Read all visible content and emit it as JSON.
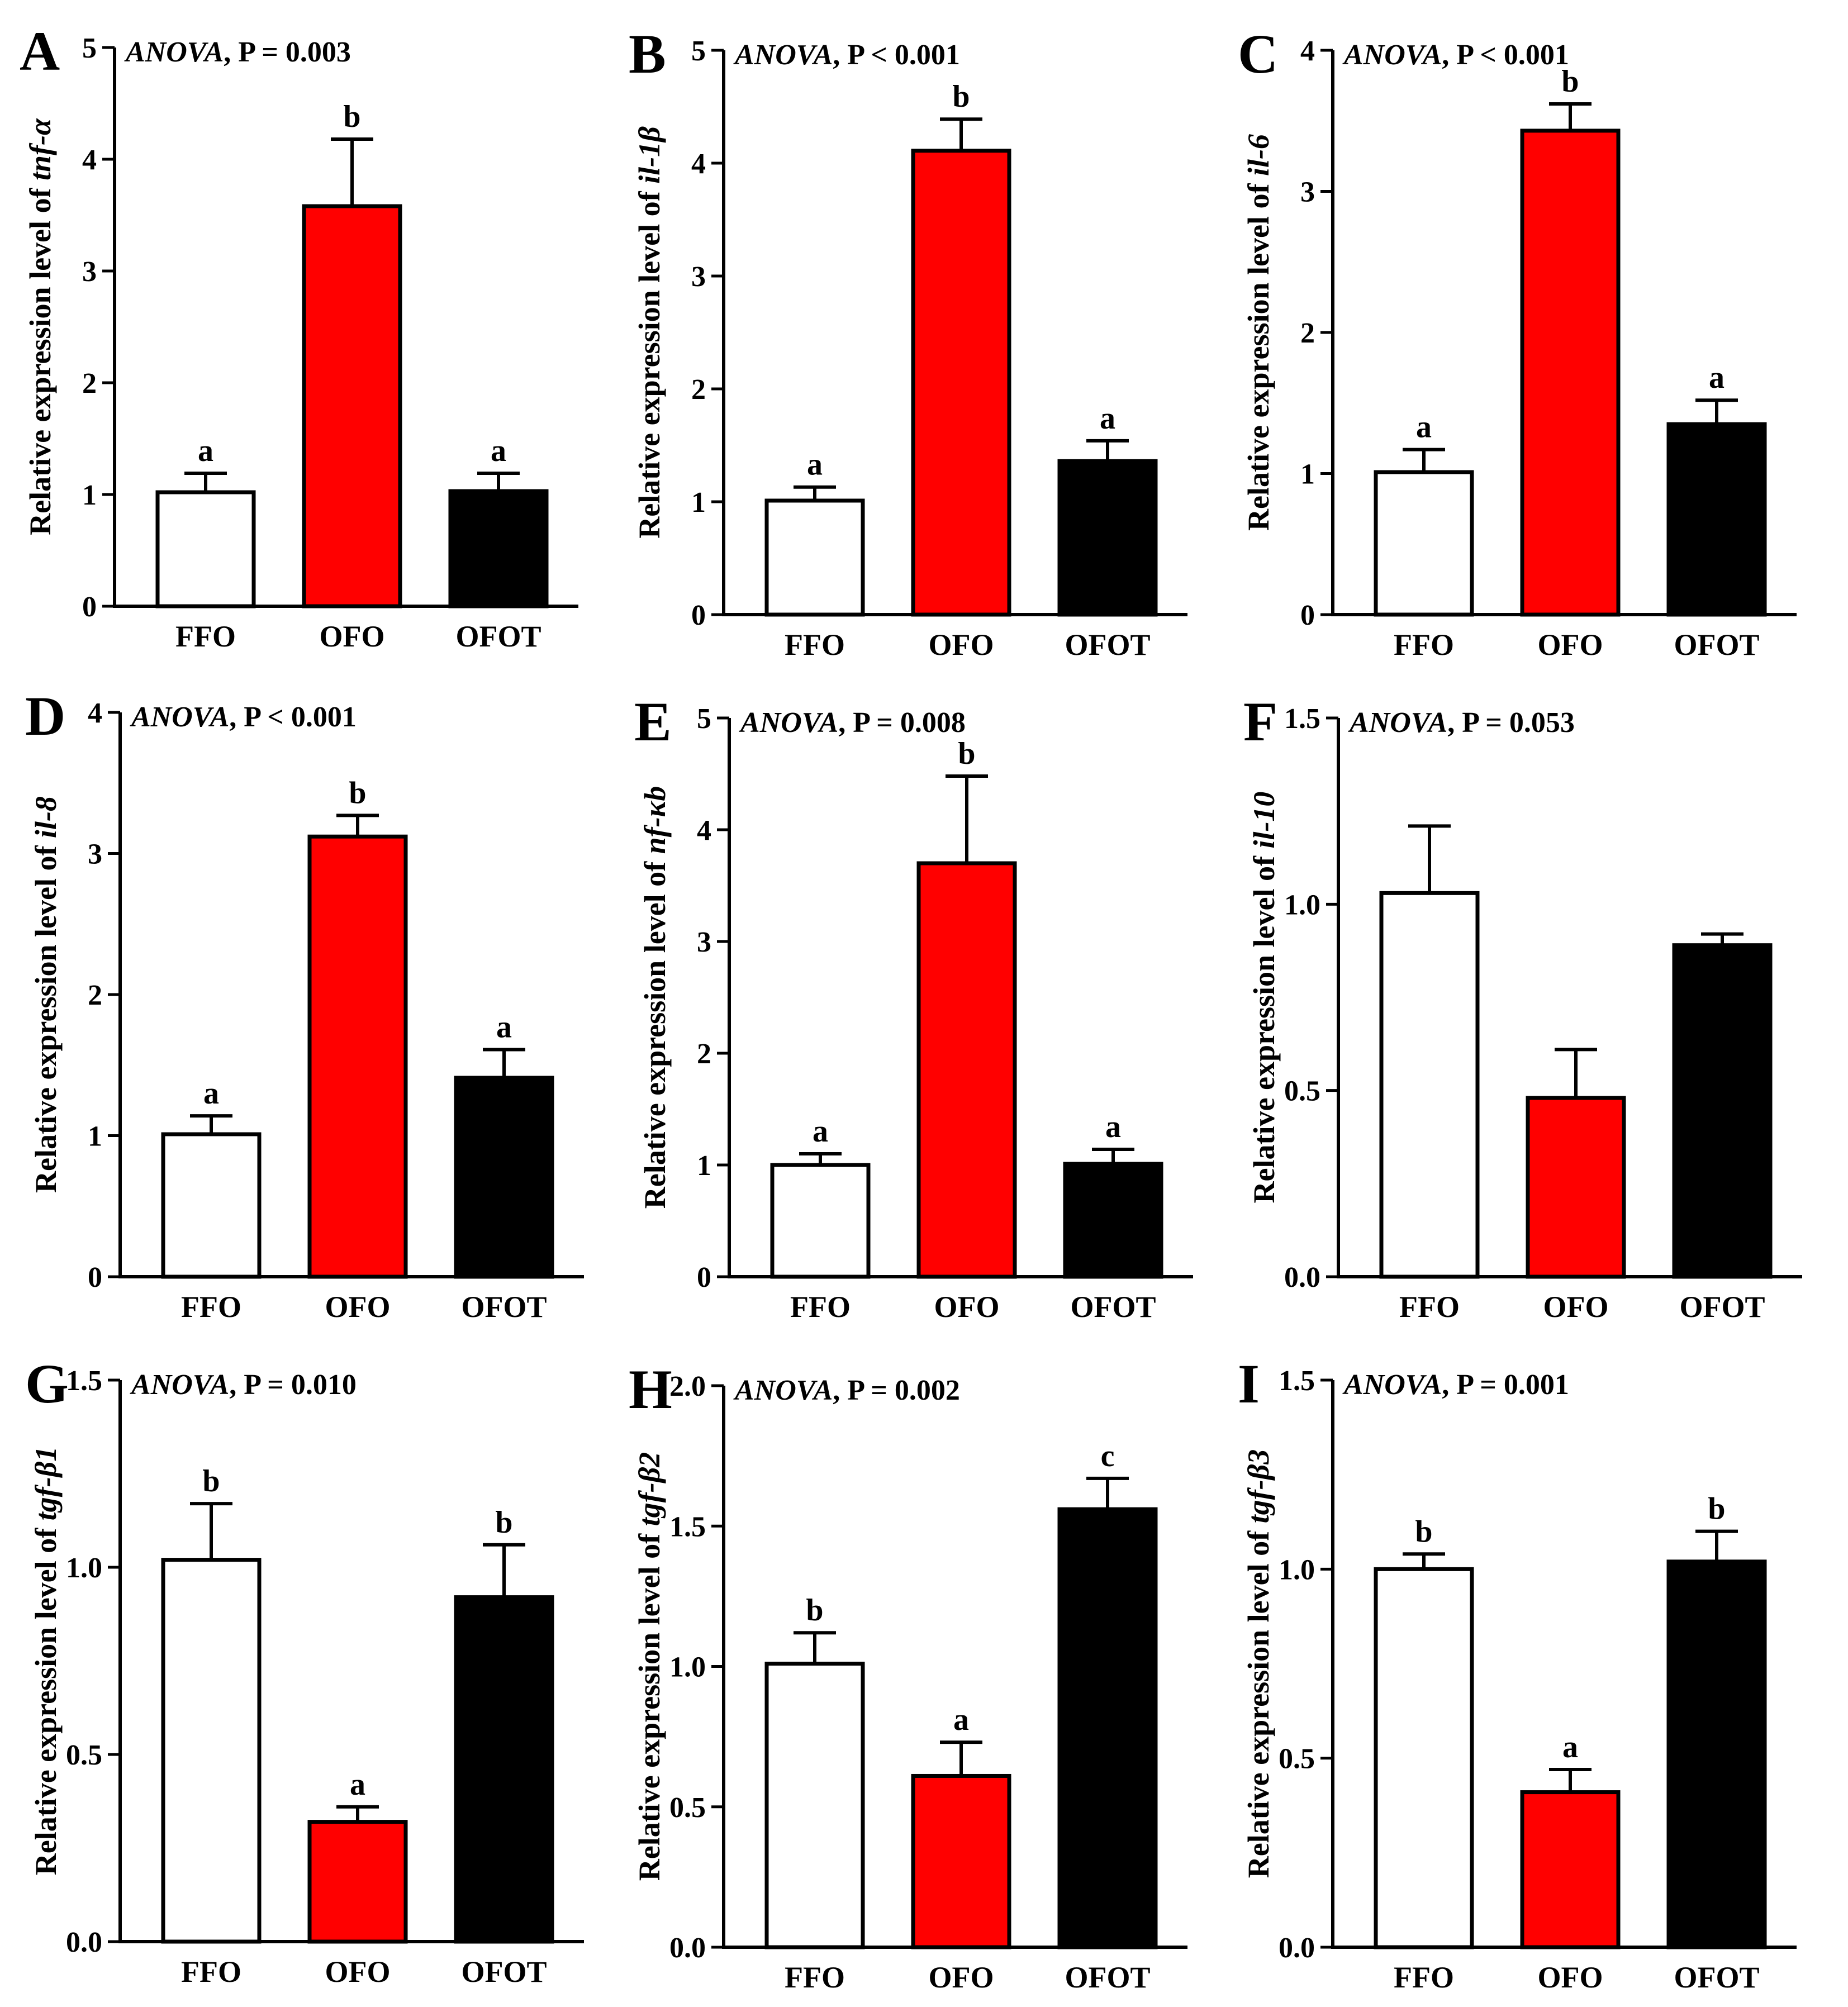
{
  "figure": {
    "x_categories": [
      "FFO",
      "OFO",
      "OFOT"
    ],
    "colors": {
      "FFO": "#ffffff",
      "OFO": "#ff0000",
      "OFOT": "#000000"
    },
    "ylabel_prefix": "Relative expression level of "
  },
  "chart_data": [
    {
      "panel": "A",
      "type": "bar",
      "gene": "tnf-α",
      "ylabel": "Relative expression level of tnf-α",
      "stat_test": "ANOVA",
      "p_text": "P = 0.003",
      "categories": [
        "FFO",
        "OFO",
        "OFOT"
      ],
      "values": [
        1.02,
        3.58,
        1.03
      ],
      "errors": [
        0.17,
        0.6,
        0.16
      ],
      "letters": [
        "a",
        "b",
        "a"
      ],
      "ylim": [
        0,
        5
      ],
      "yticks": [
        "0",
        "1",
        "2",
        "3",
        "4",
        "5"
      ]
    },
    {
      "panel": "B",
      "type": "bar",
      "gene": "il-1β",
      "ylabel": "Relative expression level of il-1β",
      "stat_test": "ANOVA",
      "p_text": "P < 0.001",
      "categories": [
        "FFO",
        "OFO",
        "OFOT"
      ],
      "values": [
        1.01,
        4.11,
        1.36
      ],
      "errors": [
        0.12,
        0.28,
        0.18
      ],
      "letters": [
        "a",
        "b",
        "a"
      ],
      "ylim": [
        0,
        5
      ],
      "yticks": [
        "0",
        "1",
        "2",
        "3",
        "4",
        "5"
      ]
    },
    {
      "panel": "C",
      "type": "bar",
      "gene": "il-6",
      "ylabel": "Relative expression level of il-6",
      "stat_test": "ANOVA",
      "p_text": "P < 0.001",
      "categories": [
        "FFO",
        "OFO",
        "OFOT"
      ],
      "values": [
        1.01,
        3.43,
        1.35
      ],
      "errors": [
        0.16,
        0.19,
        0.17
      ],
      "letters": [
        "a",
        "b",
        "a"
      ],
      "ylim": [
        0,
        4
      ],
      "yticks": [
        "0",
        "1",
        "2",
        "3",
        "4"
      ]
    },
    {
      "panel": "D",
      "type": "bar",
      "gene": "il-8",
      "ylabel": "Relative expression level of il-8",
      "stat_test": "ANOVA",
      "p_text": "P < 0.001",
      "categories": [
        "FFO",
        "OFO",
        "OFOT"
      ],
      "values": [
        1.01,
        3.12,
        1.41
      ],
      "errors": [
        0.13,
        0.15,
        0.2
      ],
      "letters": [
        "a",
        "b",
        "a"
      ],
      "ylim": [
        0,
        4
      ],
      "yticks": [
        "0",
        "1",
        "2",
        "3",
        "4"
      ]
    },
    {
      "panel": "E",
      "type": "bar",
      "gene": "nf-κb",
      "ylabel": "Relative expression level of nf-κb",
      "stat_test": "ANOVA",
      "p_text": "P = 0.008",
      "categories": [
        "FFO",
        "OFO",
        "OFOT"
      ],
      "values": [
        1.0,
        3.7,
        1.01
      ],
      "errors": [
        0.1,
        0.78,
        0.13
      ],
      "letters": [
        "a",
        "b",
        "a"
      ],
      "ylim": [
        0,
        5
      ],
      "yticks": [
        "0",
        "1",
        "2",
        "3",
        "4",
        "5"
      ]
    },
    {
      "panel": "F",
      "type": "bar",
      "gene": "il-10",
      "ylabel": "Relative expression level of il-10",
      "stat_test": "ANOVA",
      "p_text": "P = 0.053",
      "categories": [
        "FFO",
        "OFO",
        "OFOT"
      ],
      "values": [
        1.03,
        0.48,
        0.89
      ],
      "errors": [
        0.18,
        0.13,
        0.03
      ],
      "letters": [
        "",
        "",
        ""
      ],
      "ylim": [
        0,
        1.5
      ],
      "yticks": [
        "0.0",
        "0.5",
        "1.0",
        "1.5"
      ]
    },
    {
      "panel": "G",
      "type": "bar",
      "gene": "tgf-β1",
      "ylabel": "Relative expression level of tgf-β1",
      "stat_test": "ANOVA",
      "p_text": "P = 0.010",
      "categories": [
        "FFO",
        "OFO",
        "OFOT"
      ],
      "values": [
        1.02,
        0.32,
        0.92
      ],
      "errors": [
        0.15,
        0.04,
        0.14
      ],
      "letters": [
        "b",
        "a",
        "b"
      ],
      "ylim": [
        0,
        1.5
      ],
      "yticks": [
        "0.0",
        "0.5",
        "1.0",
        "1.5"
      ]
    },
    {
      "panel": "H",
      "type": "bar",
      "gene": "tgf-β2",
      "ylabel": "Relative expression level of tgf-β2",
      "stat_test": "ANOVA",
      "p_text": "P = 0.002",
      "categories": [
        "FFO",
        "OFO",
        "OFOT"
      ],
      "values": [
        1.01,
        0.61,
        1.56
      ],
      "errors": [
        0.11,
        0.12,
        0.11
      ],
      "letters": [
        "b",
        "a",
        "c"
      ],
      "ylim": [
        0,
        2.0
      ],
      "yticks": [
        "0.0",
        "0.5",
        "1.0",
        "1.5",
        "2.0"
      ]
    },
    {
      "panel": "I",
      "type": "bar",
      "gene": "tgf-β3",
      "ylabel": "Relative expression level of tgf-β3",
      "stat_test": "ANOVA",
      "p_text": "P = 0.001",
      "categories": [
        "FFO",
        "OFO",
        "OFOT"
      ],
      "values": [
        1.0,
        0.41,
        1.02
      ],
      "errors": [
        0.04,
        0.06,
        0.08
      ],
      "letters": [
        "b",
        "a",
        "b"
      ],
      "ylim": [
        0,
        1.5
      ],
      "yticks": [
        "0.0",
        "0.5",
        "1.0",
        "1.5"
      ]
    }
  ]
}
